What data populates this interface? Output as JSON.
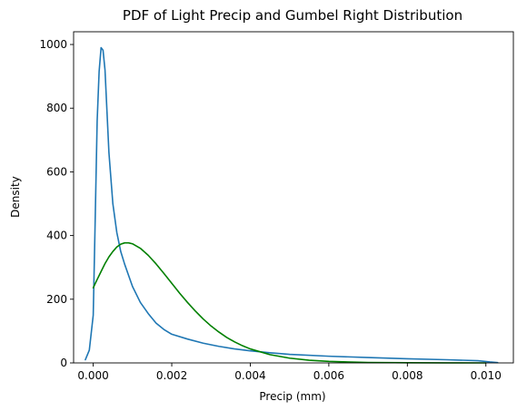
{
  "chart_data": {
    "type": "line",
    "title": "PDF of Light Precip and Gumbel Right Distribution",
    "xlabel": "Precip (mm)",
    "ylabel": "Density",
    "xlim": [
      -0.0005,
      0.0107
    ],
    "ylim": [
      0,
      1040
    ],
    "xticks": [
      0.0,
      0.002,
      0.004,
      0.006,
      0.008,
      0.01
    ],
    "xtick_labels": [
      "0.000",
      "0.002",
      "0.004",
      "0.006",
      "0.008",
      "0.010"
    ],
    "yticks": [
      0,
      200,
      400,
      600,
      800,
      1000
    ],
    "ytick_labels": [
      "0",
      "200",
      "400",
      "600",
      "800",
      "1000"
    ],
    "grid": false,
    "series": [
      {
        "color": "#1f77b4",
        "x": [
          -0.0002,
          -0.0001,
          0.0,
          5e-05,
          0.0001,
          0.00015,
          0.0002,
          0.00025,
          0.0003,
          0.00035,
          0.0004,
          0.0005,
          0.0006,
          0.0007,
          0.0008,
          0.0009,
          0.001,
          0.0012,
          0.0014,
          0.0016,
          0.0018,
          0.002,
          0.0024,
          0.0028,
          0.0032,
          0.0036,
          0.004,
          0.0045,
          0.005,
          0.006,
          0.007,
          0.008,
          0.009,
          0.0098,
          0.0101,
          0.0103
        ],
        "y": [
          10,
          40,
          150,
          450,
          760,
          915,
          990,
          982,
          920,
          790,
          660,
          500,
          410,
          350,
          310,
          275,
          240,
          190,
          155,
          125,
          105,
          90,
          75,
          62,
          52,
          44,
          38,
          32,
          27,
          21,
          17,
          13,
          10,
          7,
          3,
          1
        ]
      },
      {
        "color": "#008000",
        "x": [
          0.0,
          0.0001,
          0.0002,
          0.0003,
          0.0004,
          0.0005,
          0.0006,
          0.0007,
          0.0008,
          0.0009,
          0.001,
          0.0012,
          0.0014,
          0.0016,
          0.0018,
          0.002,
          0.0022,
          0.0024,
          0.0026,
          0.0028,
          0.003,
          0.0032,
          0.0034,
          0.0036,
          0.0038,
          0.004,
          0.0045,
          0.005,
          0.0055,
          0.006,
          0.007,
          0.008,
          0.009,
          0.01
        ],
        "y": [
          236,
          262,
          287,
          312,
          333,
          350,
          364,
          373,
          377,
          377,
          374,
          360,
          338,
          311,
          281,
          250,
          219,
          190,
          163,
          138,
          116,
          97,
          80,
          66,
          54,
          44,
          26,
          15,
          8.5,
          4.7,
          1.4,
          0.4,
          0.1,
          0.03
        ]
      }
    ]
  }
}
